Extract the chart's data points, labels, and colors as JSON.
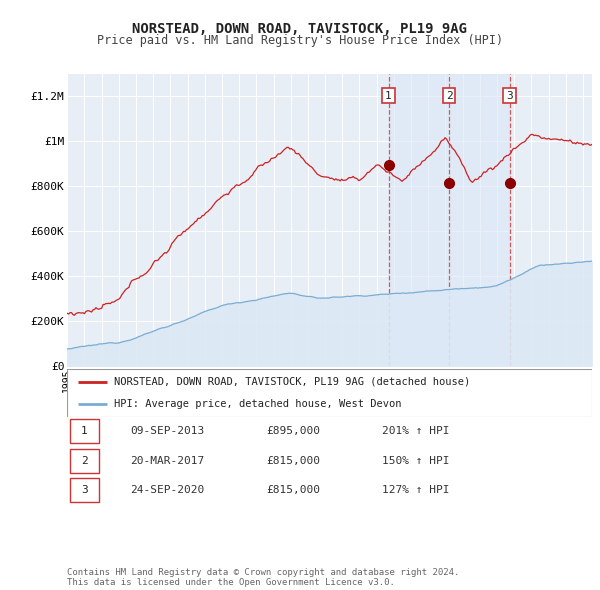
{
  "title": "NORSTEAD, DOWN ROAD, TAVISTOCK, PL19 9AG",
  "subtitle": "Price paid vs. HM Land Registry's House Price Index (HPI)",
  "background_color": "#ffffff",
  "plot_bg_color": "#e8eef5",
  "grid_color": "#ffffff",
  "hpi_line_color": "#7aadd4",
  "hpi_fill_color": "#dce8f5",
  "price_line_color": "#cc2222",
  "marker_color": "#8b0000",
  "shade_color": "#dce8f8",
  "dashed_line_color": "#cc4444",
  "x_min": 1995.0,
  "x_max": 2025.5,
  "y_min": 0,
  "y_max": 1300000,
  "sale_dates": [
    2013.69,
    2017.22,
    2020.73
  ],
  "sale_prices": [
    895000,
    815000,
    815000
  ],
  "sale_labels": [
    "1",
    "2",
    "3"
  ],
  "sale_info": [
    {
      "num": "1",
      "date": "09-SEP-2013",
      "price": "£895,000",
      "hpi": "201% ↑ HPI"
    },
    {
      "num": "2",
      "date": "20-MAR-2017",
      "price": "£815,000",
      "hpi": "150% ↑ HPI"
    },
    {
      "num": "3",
      "date": "24-SEP-2020",
      "price": "£815,000",
      "hpi": "127% ↑ HPI"
    }
  ],
  "legend_label_price": "NORSTEAD, DOWN ROAD, TAVISTOCK, PL19 9AG (detached house)",
  "legend_label_hpi": "HPI: Average price, detached house, West Devon",
  "footnote1": "Contains HM Land Registry data © Crown copyright and database right 2024.",
  "footnote2": "This data is licensed under the Open Government Licence v3.0.",
  "ytick_labels": [
    "£0",
    "£200K",
    "£400K",
    "£600K",
    "£800K",
    "£1M",
    "£1.2M"
  ],
  "ytick_values": [
    0,
    200000,
    400000,
    600000,
    800000,
    1000000,
    1200000
  ]
}
